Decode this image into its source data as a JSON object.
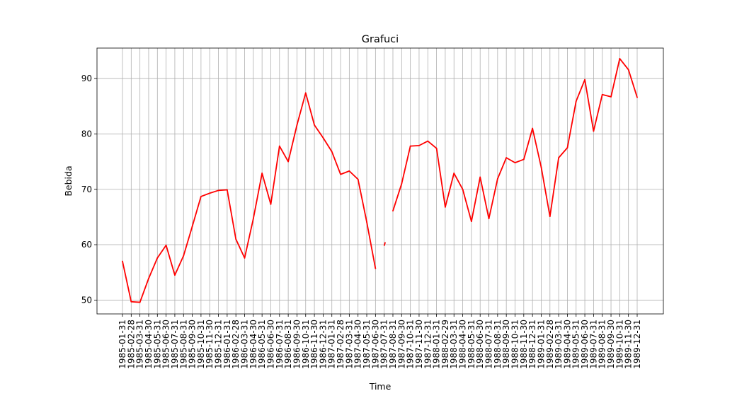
{
  "chart_data": {
    "type": "line",
    "title": "Grafuci",
    "xlabel": "Time",
    "ylabel": "Bebida",
    "grid": true,
    "ylim": [
      47.5,
      95.5
    ],
    "yticks": [
      50,
      60,
      70,
      80,
      90
    ],
    "categories": [
      "1985-01-31",
      "1985-02-28",
      "1985-03-31",
      "1985-04-30",
      "1985-05-31",
      "1985-06-30",
      "1985-07-31",
      "1985-08-31",
      "1985-09-30",
      "1985-10-31",
      "1985-11-30",
      "1985-12-31",
      "1986-01-31",
      "1986-02-28",
      "1986-03-31",
      "1986-04-30",
      "1986-05-31",
      "1986-06-30",
      "1986-07-31",
      "1986-08-31",
      "1986-09-30",
      "1986-10-31",
      "1986-11-30",
      "1986-12-31",
      "1987-01-31",
      "1987-02-28",
      "1987-03-31",
      "1987-04-30",
      "1987-05-31",
      "1987-06-30",
      "1987-07-31",
      "1987-08-31",
      "1987-09-30",
      "1987-10-31",
      "1987-11-30",
      "1987-12-31",
      "1988-01-31",
      "1988-02-29",
      "1988-03-31",
      "1988-04-30",
      "1988-05-31",
      "1988-06-30",
      "1988-07-31",
      "1988-08-31",
      "1988-09-30",
      "1988-10-31",
      "1988-11-30",
      "1988-12-31",
      "1989-01-31",
      "1989-02-28",
      "1989-03-31",
      "1989-04-30",
      "1989-05-31",
      "1989-06-30",
      "1989-07-31",
      "1989-08-31",
      "1989-09-30",
      "1989-10-31",
      "1989-11-30",
      "1989-12-31"
    ],
    "series": [
      {
        "color": "#ff0000",
        "values": [
          57.0,
          49.7,
          49.6,
          53.9,
          57.6,
          59.9,
          54.5,
          58.0,
          63.3,
          68.7,
          69.3,
          69.8,
          69.9,
          61.0,
          57.6,
          64.7,
          72.9,
          67.3,
          77.8,
          75.0,
          81.6,
          87.4,
          81.6,
          79.3,
          76.8,
          72.7,
          73.3,
          71.8,
          64.1,
          55.7,
          null,
          66.1,
          71.0,
          77.8,
          77.9,
          78.7,
          77.4,
          66.8,
          72.9,
          70.0,
          64.2,
          72.2,
          64.7,
          71.9,
          75.7,
          74.8,
          75.4,
          81.0,
          74.0,
          65.1,
          75.7,
          77.5,
          85.9,
          89.8,
          80.5,
          87.1,
          86.7,
          93.6,
          91.6,
          86.6
        ]
      }
    ],
    "gap_point": {
      "category": "1987-07-31",
      "value": 59.8
    }
  }
}
